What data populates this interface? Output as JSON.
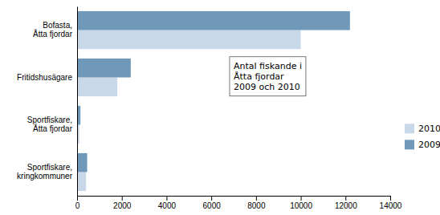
{
  "chart_data": {
    "type": "bar",
    "orientation": "horizontal",
    "categories": [
      "Bofasta,\nÅtta fjordar",
      "Fritidshusägare",
      "Sportfiskare,\nÅtta fjordar",
      "Sportfiskare,\nkringkommuner"
    ],
    "series": [
      {
        "name": "2010",
        "color": "#c8d8e8",
        "values": [
          10000,
          1800,
          100,
          400
        ]
      },
      {
        "name": "2009",
        "color": "#7098b8",
        "values": [
          12200,
          2400,
          150,
          450
        ]
      }
    ],
    "xlim": [
      0,
      14000
    ],
    "xticks": [
      0,
      2000,
      4000,
      6000,
      8000,
      10000,
      12000,
      14000
    ],
    "annotation": "Antal fiskande i\nÅtta fjordar\n2009 och 2010",
    "legend": "right",
    "grid": false
  }
}
